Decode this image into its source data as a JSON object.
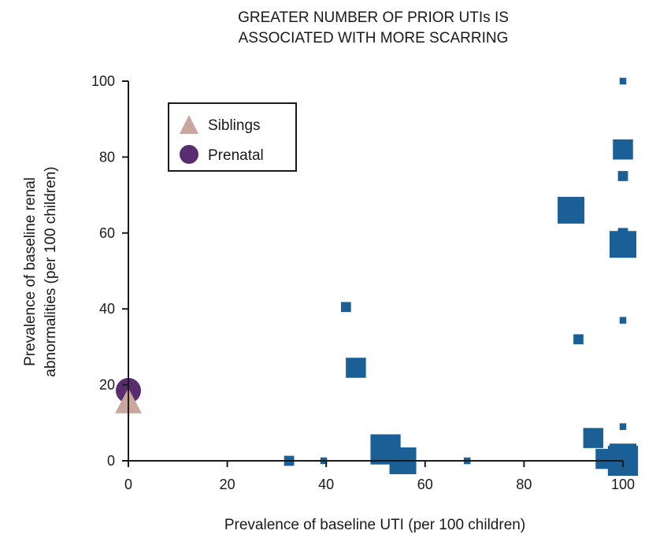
{
  "chart_data": {
    "type": "scatter",
    "title_lines": [
      "GREATER NUMBER OF PRIOR UTIs IS",
      "ASSOCIATED WITH MORE SCARRING"
    ],
    "xlabel": "Prevalence of baseline UTI (per 100 children)",
    "ylabel_lines": [
      "Prevalence of baseline renal",
      "abnormalities (per 100 children)"
    ],
    "xlim": [
      0,
      100
    ],
    "ylim": [
      0,
      100
    ],
    "xticks": [
      "0",
      "20",
      "40",
      "60",
      "80",
      "100"
    ],
    "yticks": [
      "0",
      "20",
      "40",
      "60",
      "80",
      "100"
    ],
    "grid": false,
    "legend_position": "top-left",
    "colors": {
      "studies": "#1a5f96",
      "siblings": "#c9a79c",
      "prenatal": "#5a2d6e",
      "axis": "#1a1a1a"
    },
    "series": [
      {
        "name": "Siblings",
        "marker": "triangle",
        "points": [
          {
            "x": 0,
            "y": 15
          }
        ]
      },
      {
        "name": "Prenatal",
        "marker": "circle",
        "points": [
          {
            "x": 0,
            "y": 18.5
          }
        ]
      },
      {
        "marker": "square",
        "points": [
          {
            "x": 100,
            "y": 100,
            "w": 1
          },
          {
            "x": 100,
            "y": 82,
            "w": 3
          },
          {
            "x": 100,
            "y": 75,
            "w": 1.5
          },
          {
            "x": 89.5,
            "y": 66,
            "w": 4
          },
          {
            "x": 100,
            "y": 60,
            "w": 1.5
          },
          {
            "x": 100,
            "y": 57,
            "w": 4
          },
          {
            "x": 44,
            "y": 40.5,
            "w": 1.5
          },
          {
            "x": 100,
            "y": 37,
            "w": 1
          },
          {
            "x": 91,
            "y": 32,
            "w": 1.5
          },
          {
            "x": 46,
            "y": 24.5,
            "w": 3
          },
          {
            "x": 100,
            "y": 9,
            "w": 1
          },
          {
            "x": 94,
            "y": 6,
            "w": 3
          },
          {
            "x": 52,
            "y": 3,
            "w": 4.5
          },
          {
            "x": 55.5,
            "y": 0,
            "w": 4
          },
          {
            "x": 32.5,
            "y": 0,
            "w": 1.5
          },
          {
            "x": 39.5,
            "y": 0,
            "w": 1
          },
          {
            "x": 68.5,
            "y": 0,
            "w": 1
          },
          {
            "x": 96.5,
            "y": 0.5,
            "w": 3
          },
          {
            "x": 100,
            "y": 1,
            "w": 4
          },
          {
            "x": 100,
            "y": 0,
            "w": 4.5
          }
        ]
      }
    ]
  }
}
